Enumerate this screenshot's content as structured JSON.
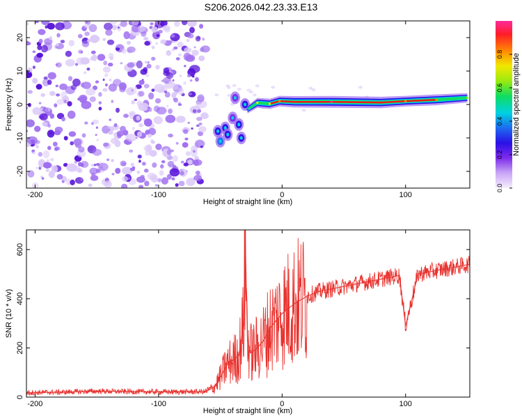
{
  "title": "S206.2026.042.23.33.E13",
  "colors": {
    "noise_fill": "#a070f0",
    "noise_dark": "#5510d8",
    "noise_light": "#dccaf8",
    "snr_line": "#e8322e",
    "ridge_core": "#ee1a1a",
    "axis": "#000000"
  },
  "colorbar": {
    "label": "Normalized spectral amplitude",
    "ticks": [
      {
        "v": 0.0,
        "label": "0.0"
      },
      {
        "v": 0.2,
        "label": "0.2"
      },
      {
        "v": 0.4,
        "label": "0.4"
      },
      {
        "v": 0.6,
        "label": "0.6"
      },
      {
        "v": 0.8,
        "label": "0.8"
      }
    ],
    "stops": [
      "#f6eefe",
      "#c9a6f6",
      "#7d2cea",
      "#2a10e6",
      "#1e6cf0",
      "#00d2e0",
      "#10dc60",
      "#9aea10",
      "#f0e800",
      "#ff8a00",
      "#ff1c28",
      "#ff2c9a"
    ]
  },
  "chart_data": [
    {
      "type": "heatmap",
      "xlabel": "Height of straight line (km)",
      "ylabel": "Frequency (Hz)",
      "xlim": [
        -207,
        152
      ],
      "ylim": [
        -25,
        25
      ],
      "xticks": [
        {
          "v": -200,
          "label": "-200"
        },
        {
          "v": -100,
          "label": "-100"
        },
        {
          "v": 0,
          "label": "0"
        },
        {
          "v": 100,
          "label": "100"
        }
      ],
      "yticks": [
        {
          "v": -20,
          "label": "-20"
        },
        {
          "v": -10,
          "label": "-10"
        },
        {
          "v": 0,
          "label": "0"
        },
        {
          "v": 10,
          "label": "10"
        },
        {
          "v": 20,
          "label": "20"
        }
      ],
      "noise_region_x": [
        -207,
        -62
      ],
      "cluster_points": [
        {
          "x": -52,
          "y": -8,
          "amp": 0.3
        },
        {
          "x": -50,
          "y": -11,
          "amp": 0.35
        },
        {
          "x": -46,
          "y": -7,
          "amp": 0.25
        },
        {
          "x": -44,
          "y": -9,
          "amp": 0.3
        },
        {
          "x": -40,
          "y": -4,
          "amp": 0.2
        },
        {
          "x": -38,
          "y": 2,
          "amp": 0.22
        },
        {
          "x": -35,
          "y": -6,
          "amp": 0.28
        },
        {
          "x": -33,
          "y": -10,
          "amp": 0.25
        },
        {
          "x": -30,
          "y": 0,
          "amp": 0.3
        }
      ],
      "ridge_points": [
        {
          "x": -28,
          "y": -1.5,
          "amp": 0.35
        },
        {
          "x": -20,
          "y": 0.5,
          "amp": 0.7
        },
        {
          "x": -10,
          "y": 0.2,
          "amp": 0.75
        },
        {
          "x": -2,
          "y": 1,
          "amp": 0.8
        },
        {
          "x": 10,
          "y": 0.8,
          "amp": 0.95
        },
        {
          "x": 40,
          "y": 0.8,
          "amp": 1.0
        },
        {
          "x": 80,
          "y": 0.6,
          "amp": 0.95
        },
        {
          "x": 100,
          "y": 1,
          "amp": 0.8
        },
        {
          "x": 125,
          "y": 1.4,
          "amp": 0.85
        },
        {
          "x": 150,
          "y": 2,
          "amp": 0.6
        }
      ]
    },
    {
      "type": "line",
      "xlabel": "Height of straight line (km)",
      "ylabel": "SNR (10 * v/v)",
      "xlim": [
        -207,
        152
      ],
      "ylim": [
        0,
        680
      ],
      "xticks": [
        {
          "v": -200,
          "label": "-200"
        },
        {
          "v": -100,
          "label": "-100"
        },
        {
          "v": 0,
          "label": "0"
        },
        {
          "v": 100,
          "label": "100"
        }
      ],
      "yticks": [
        {
          "v": 0,
          "label": "0"
        },
        {
          "v": 200,
          "label": "200"
        },
        {
          "v": 400,
          "label": "400"
        },
        {
          "v": 600,
          "label": "600"
        }
      ],
      "series": [
        {
          "name": "SNR",
          "x": [
            -207,
            -180,
            -150,
            -120,
            -90,
            -62,
            -55,
            -50,
            -45,
            -40,
            -35,
            -31,
            -30,
            -28,
            -25,
            -20,
            -15,
            -10,
            -5,
            0,
            10,
            20,
            30,
            40,
            60,
            80,
            95,
            100,
            110,
            130,
            152
          ],
          "y": [
            18,
            20,
            24,
            22,
            21,
            22,
            40,
            80,
            130,
            150,
            170,
            300,
            680,
            230,
            180,
            200,
            230,
            280,
            310,
            340,
            380,
            410,
            430,
            440,
            460,
            480,
            495,
            290,
            500,
            520,
            540
          ]
        }
      ]
    }
  ]
}
